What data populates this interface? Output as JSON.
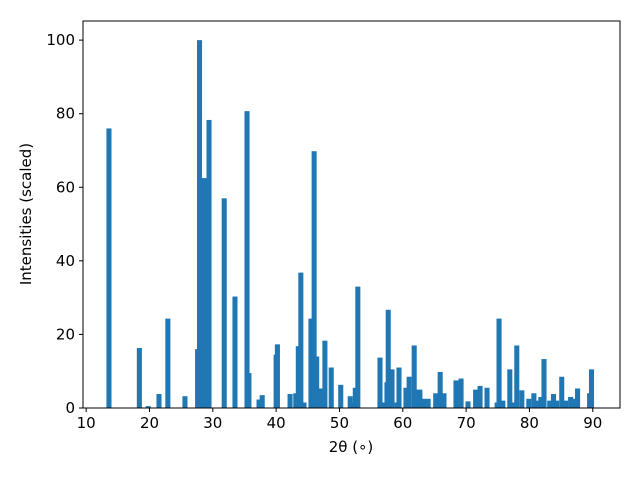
{
  "chart_data": {
    "type": "bar",
    "xlabel": "2θ (∘)",
    "ylabel": "Intensities (scaled)",
    "x": [
      13.6,
      18.4,
      19.8,
      21.5,
      22.9,
      25.6,
      27.6,
      27.9,
      28.6,
      29.4,
      31.8,
      33.5,
      35.4,
      35.7,
      37.3,
      37.8,
      40.0,
      40.2,
      42.2,
      43.1,
      43.5,
      43.9,
      44.4,
      45.5,
      46.0,
      46.4,
      47.1,
      47.7,
      48.7,
      50.2,
      51.7,
      52.1,
      52.5,
      52.9,
      56.4,
      56.9,
      57.5,
      57.7,
      58.3,
      59.1,
      59.4,
      60.5,
      61.0,
      61.8,
      62.1,
      62.7,
      63.3,
      64.0,
      65.2,
      65.9,
      66.5,
      68.4,
      69.2,
      70.3,
      71.5,
      72.2,
      73.3,
      74.9,
      75.2,
      75.8,
      76.9,
      77.4,
      78.0,
      78.8,
      79.9,
      80.7,
      81.2,
      81.8,
      82.3,
      83.2,
      83.8,
      84.3,
      85.1,
      85.7,
      86.5,
      87.0,
      87.6,
      89.5,
      89.8
    ],
    "values": [
      76,
      16.3,
      0.5,
      3.8,
      24.3,
      3.2,
      16,
      100,
      62.5,
      78.3,
      57,
      30.3,
      80.7,
      9.5,
      2.3,
      3.5,
      14.5,
      17.3,
      3.8,
      4,
      16.8,
      36.8,
      1.5,
      24.3,
      69.8,
      14,
      5.3,
      18.3,
      11,
      6.3,
      3.2,
      1.5,
      5.5,
      33,
      13.7,
      1.5,
      7,
      26.7,
      10.5,
      1.5,
      11,
      5.5,
      8.5,
      17,
      5,
      5,
      2.5,
      2.5,
      4,
      9.8,
      4,
      7.5,
      8,
      1.8,
      5,
      6,
      5.5,
      1.5,
      24.3,
      2,
      10.5,
      1.5,
      17,
      4.8,
      2.5,
      4,
      2,
      3,
      13.3,
      2,
      3.8,
      2,
      8.5,
      2,
      3,
      2.5,
      5.3,
      4,
      10.5
    ],
    "color": "#1f77b4",
    "xlim": [
      9.5,
      94.3
    ],
    "ylim": [
      0,
      105.2
    ],
    "xticks": [
      10,
      20,
      30,
      40,
      50,
      60,
      70,
      80,
      90
    ],
    "yticks": [
      0,
      20,
      40,
      60,
      80,
      100
    ]
  }
}
